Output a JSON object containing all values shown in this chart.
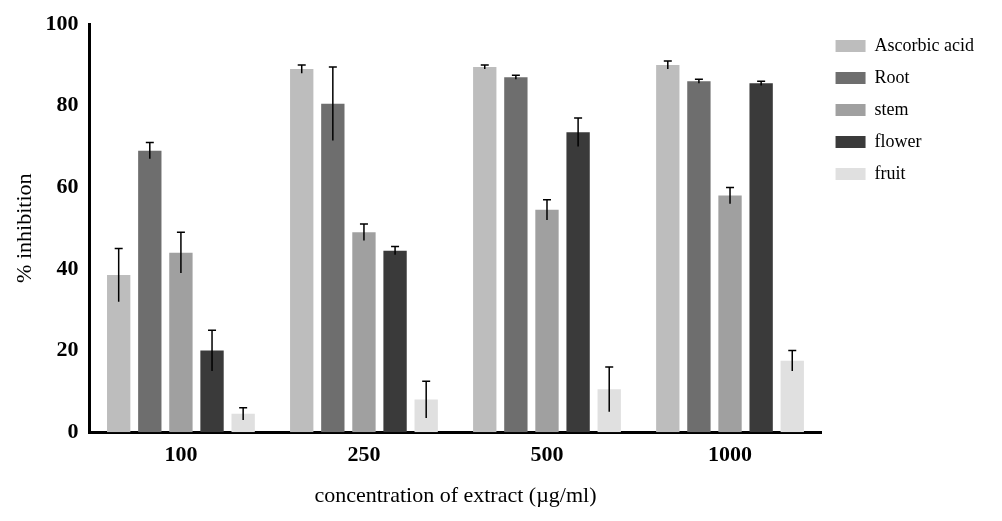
{
  "chart_data": {
    "type": "bar",
    "xlabel": "concentration of extract (µg/ml)",
    "ylabel": "% inhibition",
    "categories": [
      "100",
      "250",
      "500",
      "1000"
    ],
    "series": [
      {
        "name": "Ascorbic acid",
        "color": "#bdbdbd",
        "values": [
          38.5,
          89,
          89.5,
          90
        ],
        "errors": [
          6.5,
          1,
          0.5,
          1
        ]
      },
      {
        "name": "Root",
        "color": "#6e6e6e",
        "values": [
          69,
          80.5,
          87,
          86
        ],
        "errors": [
          2,
          9,
          0.5,
          0.5
        ]
      },
      {
        "name": "stem",
        "color": "#a0a0a0",
        "values": [
          44,
          49,
          54.5,
          58
        ],
        "errors": [
          5,
          2,
          2.5,
          2
        ]
      },
      {
        "name": "flower",
        "color": "#3a3a3a",
        "values": [
          20,
          44.5,
          73.5,
          85.5
        ],
        "errors": [
          5,
          1,
          3.5,
          0.5
        ]
      },
      {
        "name": "fruit",
        "color": "#e0e0e0",
        "values": [
          4.5,
          8,
          10.5,
          17.5
        ],
        "errors": [
          1.5,
          4.5,
          5.5,
          2.5
        ]
      }
    ],
    "ylim": [
      0,
      100
    ],
    "yticks": [
      0,
      20,
      40,
      60,
      80,
      100
    ],
    "grid": false,
    "legend": "right"
  }
}
